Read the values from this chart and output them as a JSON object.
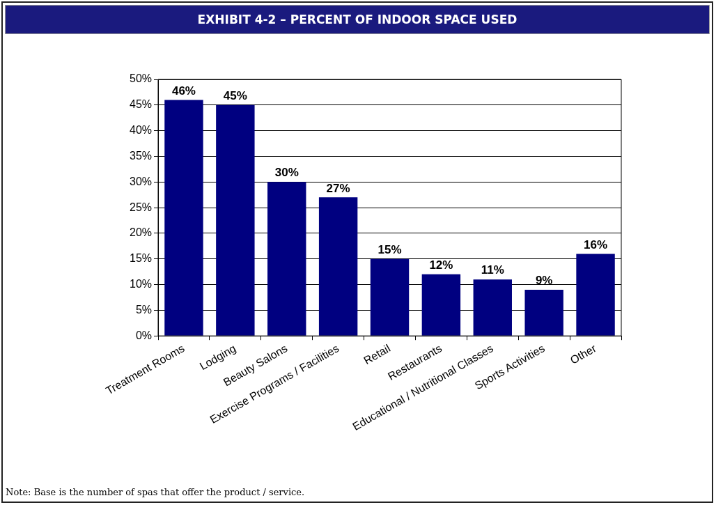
{
  "chart_data": {
    "type": "bar",
    "title": "EXHIBIT 4-2 – PERCENT OF INDOOR SPACE USED",
    "categories": [
      "Treatment Rooms",
      "Lodging",
      "Beauty Salons",
      "Exercise Programs / Facilities",
      "Retail",
      "Restaurants",
      "Educational / Nutritional Classes",
      "Sports Activities",
      "Other"
    ],
    "values": [
      46,
      45,
      30,
      27,
      15,
      12,
      11,
      9,
      16
    ],
    "color": "#000080",
    "ylim": [
      0,
      50
    ],
    "yticks": [
      {
        "value": 0,
        "label": "0%"
      },
      {
        "value": 5,
        "label": "5%"
      },
      {
        "value": 10,
        "label": "10%"
      },
      {
        "value": 15,
        "label": "15%"
      },
      {
        "value": 20,
        "label": "20%"
      },
      {
        "value": 25,
        "label": "25%"
      },
      {
        "value": 30,
        "label": "30%"
      },
      {
        "value": 35,
        "label": "35%"
      },
      {
        "value": 40,
        "label": "40%"
      },
      {
        "value": 45,
        "label": "45%"
      },
      {
        "value": 50,
        "label": "50%"
      }
    ],
    "value_labels": [
      "46%",
      "45%",
      "30%",
      "27%",
      "15%",
      "12%",
      "11%",
      "9%",
      "16%"
    ],
    "grid": "y",
    "legend": false,
    "annotations": [
      "Note: Base is the number of spas that offer the product / service."
    ]
  }
}
